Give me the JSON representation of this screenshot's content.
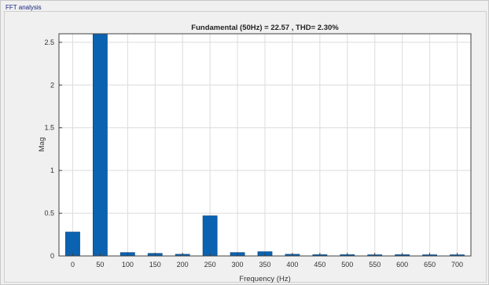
{
  "panel": {
    "title": "FFT analysis"
  },
  "chart_data": {
    "type": "bar",
    "title": "Fundamental (50Hz) = 22.57 , THD= 2.30%",
    "xlabel": "Frequency (Hz)",
    "ylabel": "Mag",
    "x": [
      0,
      50,
      100,
      150,
      200,
      250,
      300,
      350,
      400,
      450,
      500,
      550,
      600,
      650,
      700
    ],
    "values": [
      0.28,
      2.6,
      0.04,
      0.03,
      0.02,
      0.47,
      0.04,
      0.05,
      0.02,
      0.015,
      0.015,
      0.005,
      0.015,
      0.008,
      0.005
    ],
    "xlim": [
      -25,
      725
    ],
    "ylim": [
      0,
      2.6
    ],
    "yticks": [
      0,
      0.5,
      1,
      1.5,
      2,
      2.5
    ],
    "ytick_labels": [
      "0",
      "0.5",
      "1",
      "1.5",
      "2",
      "2.5"
    ],
    "xtick_labels": [
      "0",
      "50",
      "100",
      "150",
      "200",
      "250",
      "300",
      "350",
      "400",
      "450",
      "500",
      "550",
      "600",
      "650",
      "700"
    ],
    "grid": true,
    "bar_color": "#0b62b0"
  }
}
